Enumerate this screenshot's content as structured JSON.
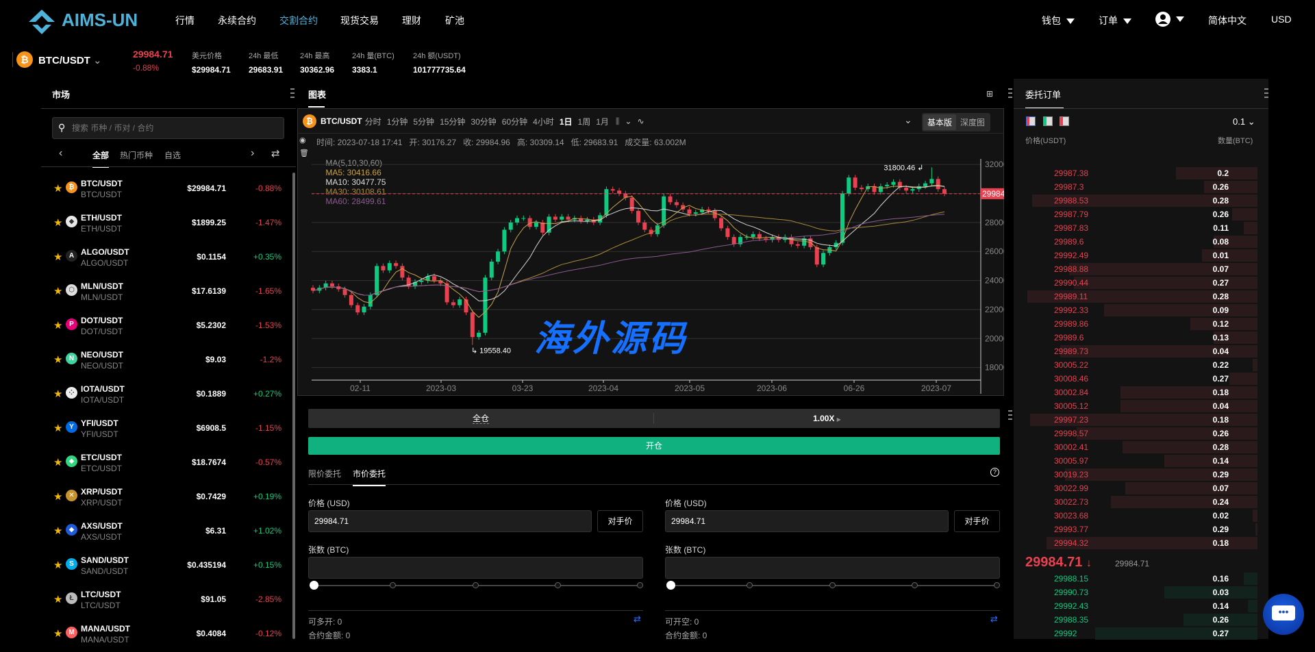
{
  "header": {
    "brand": "AIMS-UN",
    "nav": [
      "行情",
      "永续合约",
      "交割合约",
      "现货交易",
      "理财",
      "矿池"
    ],
    "active_nav": 2,
    "right": {
      "wallet": "钱包",
      "orders": "订单",
      "language": "简体中文",
      "currency": "USD"
    }
  },
  "ticker": {
    "pair": "BTC/USDT",
    "last": "29984.71",
    "change": "-0.88%",
    "stats": [
      {
        "label": "美元价格",
        "value": "$29984.71"
      },
      {
        "label": "24h 最低",
        "value": "29683.91"
      },
      {
        "label": "24h 最高",
        "value": "30362.96"
      },
      {
        "label": "24h 量(BTC)",
        "value": "3383.1"
      },
      {
        "label": "24h 额(USDT)",
        "value": "101777735.64"
      }
    ]
  },
  "market": {
    "title": "市场",
    "search_placeholder": "搜索 币种 / 币对 / 合约",
    "tabs": [
      "全部",
      "热门币种",
      "自选"
    ],
    "items": [
      {
        "pair": "BTC/USDT",
        "sub": "BTC/USDT",
        "price": "$29984.71",
        "change": "-0.88%",
        "icon": "bitcoin-icon",
        "color": "#f7931a",
        "glyph": "₿"
      },
      {
        "pair": "ETH/USDT",
        "sub": "ETH/USDT",
        "price": "$1899.25",
        "change": "-1.47%",
        "icon": "ethereum-icon",
        "color": "#e8e8e8",
        "glyph": "◆"
      },
      {
        "pair": "ALGO/USDT",
        "sub": "ALGO/USDT",
        "price": "$0.1154",
        "change": "+0.35%",
        "icon": "algorand-icon",
        "color": "#222",
        "glyph": "A"
      },
      {
        "pair": "MLN/USDT",
        "sub": "MLN/USDT",
        "price": "$17.6139",
        "change": "-1.65%",
        "icon": "melon-icon",
        "color": "#ddd",
        "glyph": "⬡"
      },
      {
        "pair": "DOT/USDT",
        "sub": "DOT/USDT",
        "price": "$5.2302",
        "change": "-1.53%",
        "icon": "polkadot-icon",
        "color": "#e6007a",
        "glyph": "P"
      },
      {
        "pair": "NEO/USDT",
        "sub": "NEO/USDT",
        "price": "$9.03",
        "change": "-1.2%",
        "icon": "neo-icon",
        "color": "#3fd5a0",
        "glyph": "N"
      },
      {
        "pair": "IOTA/USDT",
        "sub": "IOTA/USDT",
        "price": "$0.1889",
        "change": "+0.27%",
        "icon": "iota-icon",
        "color": "#eee",
        "glyph": "⁘"
      },
      {
        "pair": "YFI/USDT",
        "sub": "YFI/USDT",
        "price": "$6908.5",
        "change": "-1.15%",
        "icon": "yearn-icon",
        "color": "#006ae3",
        "glyph": "Y"
      },
      {
        "pair": "ETC/USDT",
        "sub": "ETC/USDT",
        "price": "$18.7674",
        "change": "-0.57%",
        "icon": "ethereum-classic-icon",
        "color": "#33d680",
        "glyph": "◆"
      },
      {
        "pair": "XRP/USDT",
        "sub": "XRP/USDT",
        "price": "$0.7429",
        "change": "+0.19%",
        "icon": "xrp-icon",
        "color": "#c8922c",
        "glyph": "✕"
      },
      {
        "pair": "AXS/USDT",
        "sub": "AXS/USDT",
        "price": "$6.31",
        "change": "+1.02%",
        "icon": "axie-icon",
        "color": "#1e5bd8",
        "glyph": "◆"
      },
      {
        "pair": "SAND/USDT",
        "sub": "SAND/USDT",
        "price": "$0.435194",
        "change": "+0.15%",
        "icon": "sandbox-icon",
        "color": "#00adef",
        "glyph": "S"
      },
      {
        "pair": "LTC/USDT",
        "sub": "LTC/USDT",
        "price": "$91.05",
        "change": "-2.85%",
        "icon": "litecoin-icon",
        "color": "#bbb",
        "glyph": "Ł"
      },
      {
        "pair": "MANA/USDT",
        "sub": "MANA/USDT",
        "price": "$0.4084",
        "change": "-0.12%",
        "icon": "decentraland-icon",
        "color": "#ff5f5f",
        "glyph": "M"
      }
    ]
  },
  "chart_panel": {
    "title": "图表",
    "pair": "BTC/USDT",
    "intervals": [
      "分时",
      "1分钟",
      "5分钟",
      "15分钟",
      "30分钟",
      "60分钟",
      "4小时",
      "1日",
      "1周",
      "1月"
    ],
    "active_interval": 7,
    "views": [
      "基本版",
      "深度图"
    ],
    "info": "时间: 2023-07-18 17:41   开: 30176.27   收: 29984.96   高: 30309.14   低: 29683.91   成交量: 63.002M",
    "ma_label": "MA(5,10,30,60)",
    "ma5": "MA5: 30416.66",
    "ma10": "MA10: 30477.75",
    "ma30": "MA30: 30108.61",
    "ma60": "MA60: 28499.61"
  },
  "chart_data": {
    "type": "candlestick",
    "y_ticks": [
      "32000.00",
      "28000.00",
      "26000.00",
      "24000.00",
      "22000.00",
      "20000.00",
      "18000.00"
    ],
    "ylim": [
      17134,
      32385
    ],
    "x_ticks": [
      "02-11",
      "2023-03",
      "03-23",
      "2023-04",
      "2023-05",
      "2023-06",
      "06-26",
      "2023-07"
    ],
    "last_price": 29984.96,
    "last_price_label": "29984.96",
    "high_label": "31800.46",
    "low_label": "19558.40",
    "high": 31800.46,
    "low": 19558.4,
    "colors": {
      "up": "#0ecb81",
      "down": "#e8414f",
      "ma5": "#c9a24a",
      "ma10": "#d8d8d8",
      "ma30": "#a88b3a",
      "ma60": "#8b5a8f"
    },
    "closes": [
      23300,
      23500,
      23800,
      23600,
      23400,
      23000,
      22300,
      21800,
      22200,
      23000,
      25000,
      24700,
      25200,
      25000,
      24200,
      23600,
      23900,
      24000,
      24300,
      24000,
      23800,
      22500,
      22300,
      22700,
      21800,
      20100,
      20400,
      24200,
      25300,
      26000,
      27500,
      28000,
      28300,
      28300,
      27700,
      28000,
      27300,
      28400,
      28200,
      28400,
      28200,
      28300,
      28100,
      28200,
      28000,
      28500,
      30300,
      30200,
      30000,
      29700,
      28800,
      28000,
      27500,
      27200,
      27800,
      29800,
      29400,
      29200,
      28900,
      28600,
      28700,
      28900,
      28800,
      28300,
      27600,
      27000,
      26500,
      27000,
      27000,
      27200,
      26900,
      26800,
      27000,
      26800,
      27000,
      26500,
      26400,
      26900,
      26300,
      25100,
      25900,
      26300,
      26600,
      30000,
      31100,
      30400,
      30300,
      30500,
      30100,
      30500,
      30600,
      30800,
      30400,
      30200,
      30300,
      30500,
      30700,
      31000,
      30300,
      29985
    ]
  },
  "order_form": {
    "margin_mode": "全仓",
    "leverage": "1.00X",
    "open_label": "开仓",
    "tabs": [
      "限价委托",
      "市价委托"
    ],
    "active_tab": 1,
    "price_label": "价格 (USD)",
    "amount_label": "张数 (BTC)",
    "price_value": "29984.71",
    "counter_price": "对手价",
    "long_avail": "可多开: 0",
    "short_avail": "可开空: 0",
    "contract_amount": "合约金额: 0"
  },
  "orderbook": {
    "title": "委托订单",
    "precision": "0.1",
    "col_price": "价格(USDT)",
    "col_qty": "数量(BTC)",
    "asks": [
      [
        "29987.38",
        "0.2",
        0.35
      ],
      [
        "29987.3",
        "0.26",
        0.23
      ],
      [
        "29988.53",
        "0.28",
        0.97
      ],
      [
        "29987.79",
        "0.26",
        0.11
      ],
      [
        "29987.83",
        "0.11",
        0.06
      ],
      [
        "29989.6",
        "0.08",
        0.19
      ],
      [
        "29992.49",
        "0.01",
        0.24
      ],
      [
        "29988.88",
        "0.07",
        0.81
      ],
      [
        "29990.44",
        "0.27",
        0.79
      ],
      [
        "29989.11",
        "0.28",
        0.99
      ],
      [
        "29992.33",
        "0.09",
        0.66
      ],
      [
        "29989.86",
        "0.12",
        0.29
      ],
      [
        "29989.6",
        "0.13",
        0.19
      ],
      [
        "29989.73",
        "0.04",
        0.85
      ],
      [
        "30005.22",
        "0.22",
        0.02
      ],
      [
        "30008.46",
        "0.27",
        0.12
      ],
      [
        "30002.84",
        "0.18",
        0.59
      ],
      [
        "30005.12",
        "0.04",
        0.59
      ],
      [
        "29997.23",
        "0.18",
        0.98
      ],
      [
        "29998.57",
        "0.26",
        0.78
      ],
      [
        "30002.41",
        "0.28",
        0.58
      ],
      [
        "30005.97",
        "0.14",
        0.4
      ],
      [
        "30019.23",
        "0.29",
        0.83
      ],
      [
        "30022.99",
        "0.07",
        0.57
      ],
      [
        "30022.73",
        "0.24",
        0.63
      ],
      [
        "30023.68",
        "0.02",
        0.02
      ],
      [
        "29993.77",
        "0.29",
        0.01
      ],
      [
        "29994.32",
        "0.18",
        0.91
      ]
    ],
    "last": "29984.71",
    "last_sub": "29984.71",
    "bids": [
      [
        "29988.15",
        "0.16",
        0.06
      ],
      [
        "29990.73",
        "0.03",
        0.4
      ],
      [
        "29992.43",
        "0.14",
        0.04
      ],
      [
        "29988.35",
        "0.26",
        0.32
      ],
      [
        "29992",
        "0.27",
        0.7
      ]
    ]
  },
  "watermark": "海外源码"
}
